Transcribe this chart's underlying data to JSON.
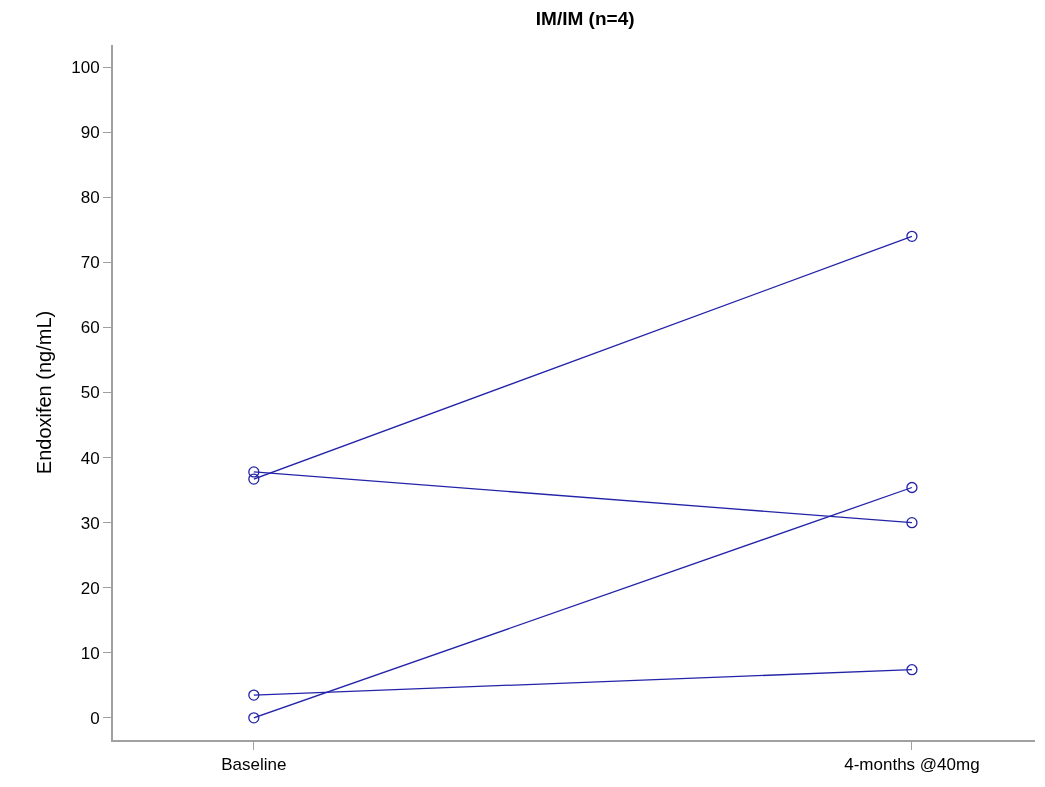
{
  "chart_data": {
    "type": "line",
    "title": "IM/IM (n=4)",
    "ylabel": "Endoxifen (ng/mL)",
    "categories": [
      "Baseline",
      "4-months @40mg"
    ],
    "series": [
      {
        "color": "#2323a8",
        "values": [
          36.7,
          74
        ]
      },
      {
        "color": "#2323a8",
        "values": [
          37.8,
          30
        ]
      },
      {
        "color": "#2323a8",
        "values": [
          0,
          35.4
        ]
      },
      {
        "color": "#2323a8",
        "values": [
          3.5,
          7.4
        ]
      }
    ],
    "ylim": [
      -3.4,
      103.4
    ],
    "yticks": [
      0,
      10,
      20,
      30,
      40,
      50,
      60,
      70,
      80,
      90,
      100
    ],
    "grid": false,
    "marker": "circle",
    "line_style": "solid"
  }
}
